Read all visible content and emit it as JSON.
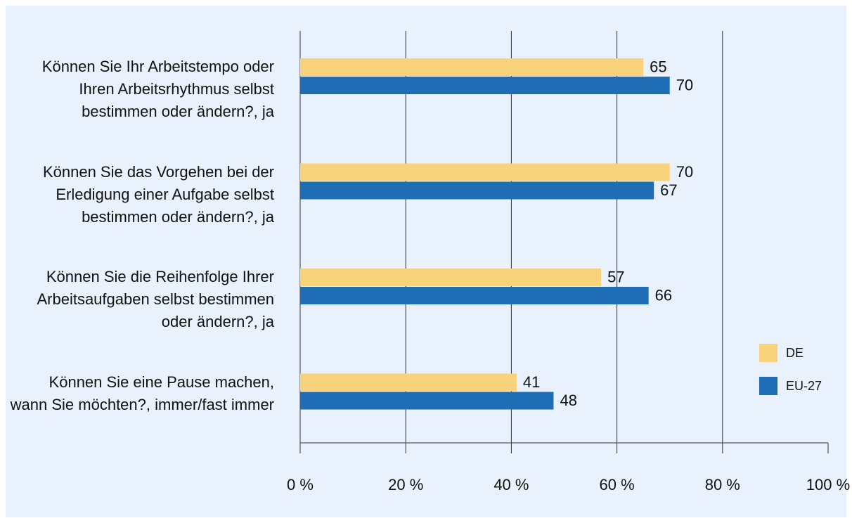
{
  "chart_data": {
    "type": "barh",
    "categories": [
      "Können Sie Ihr Arbeitstempo oder Ihren Arbeitsrhythmus selbst bestimmen oder ändern?, ja",
      "Können Sie das Vorgehen bei der Erledigung einer Aufgabe selbst bestimmen oder ändern?, ja",
      "Können Sie die Reihenfolge Ihrer Arbeitsaufgaben selbst bestimmen oder ändern?, ja",
      "Können Sie eine Pause machen, wann Sie möchten?, immer/fast immer"
    ],
    "series": [
      {
        "name": "DE",
        "color": "#f9d27c",
        "values": [
          65,
          70,
          57,
          41
        ]
      },
      {
        "name": "EU-27",
        "color": "#1f6db5",
        "values": [
          70,
          67,
          66,
          48
        ]
      }
    ],
    "xlim": [
      0,
      100
    ],
    "xticks": [
      {
        "value": 0,
        "label": "0 %"
      },
      {
        "value": 20,
        "label": "20 %"
      },
      {
        "value": 40,
        "label": "40 %"
      },
      {
        "value": 60,
        "label": "60 %"
      },
      {
        "value": 80,
        "label": "80 %"
      },
      {
        "value": 100,
        "label": "100 %"
      }
    ],
    "grid": true,
    "legend": "right"
  }
}
